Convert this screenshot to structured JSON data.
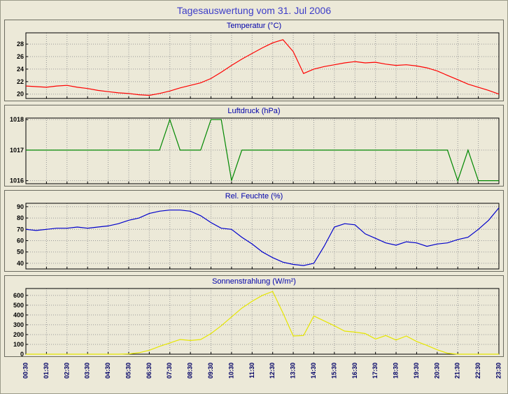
{
  "page": {
    "title": "Tagesauswertung vom 31. Jul 2006"
  },
  "colors": {
    "bg": "#ece9d8",
    "grid": "#999999",
    "title": "#3c3cc8",
    "ctitle": "#0000aa",
    "axis": "#000000",
    "xlabel": "#000066",
    "pborder": "#6b6b60"
  },
  "xaxis": {
    "tmin": 0.5,
    "tmax": 23.5,
    "labels": [
      "00:30",
      "01:30",
      "02:30",
      "03:30",
      "04:30",
      "05:30",
      "06:30",
      "07:30",
      "08:30",
      "09:30",
      "10:30",
      "11:30",
      "12:30",
      "13:30",
      "14:30",
      "15:30",
      "16:30",
      "17:30",
      "18:30",
      "19:30",
      "20:30",
      "21:30",
      "22:30",
      "23:30"
    ]
  },
  "chart_data": [
    {
      "type": "line",
      "name": "temperatur",
      "title": "Temperatur (°C)",
      "color": "#ff0000",
      "ymin": 19.3,
      "ymax": 29.8,
      "yticks": [
        28,
        26,
        24,
        22,
        20
      ],
      "tstart": 0.5,
      "tstep": 0.5,
      "values": [
        21.3,
        21.2,
        21.1,
        21.3,
        21.4,
        21.1,
        20.9,
        20.6,
        20.4,
        20.2,
        20.1,
        19.9,
        19.8,
        20.1,
        20.5,
        21.0,
        21.4,
        21.8,
        22.5,
        23.5,
        24.6,
        25.6,
        26.5,
        27.4,
        28.2,
        28.7,
        26.8,
        23.3,
        24.0,
        24.4,
        24.7,
        25.0,
        25.2,
        25.0,
        25.1,
        24.8,
        24.6,
        24.7,
        24.5,
        24.2,
        23.7,
        23.0,
        22.3,
        21.6,
        21.1,
        20.6,
        20.0
      ]
    },
    {
      "type": "line",
      "name": "luftdruck",
      "title": "Luftdruck (hPa)",
      "color": "#008800",
      "ymin": 1015.9,
      "ymax": 1018.05,
      "yticks": [
        1018,
        1017,
        1016
      ],
      "tstart": 0.5,
      "tstep": 0.5,
      "values": [
        1017,
        1017,
        1017,
        1017,
        1017,
        1017,
        1017,
        1017,
        1017,
        1017,
        1017,
        1017,
        1017,
        1017,
        1018,
        1017,
        1017,
        1017,
        1018,
        1018,
        1016,
        1017,
        1017,
        1017,
        1017,
        1017,
        1017,
        1017,
        1017,
        1017,
        1017,
        1017,
        1017,
        1017,
        1017,
        1017,
        1017,
        1017,
        1017,
        1017,
        1017,
        1017,
        1016,
        1017,
        1016,
        1016,
        1016
      ]
    },
    {
      "type": "line",
      "name": "rel-feuchte",
      "title": "Rel. Feuchte (%)",
      "color": "#0000cc",
      "ymin": 35,
      "ymax": 93,
      "yticks": [
        90,
        80,
        70,
        60,
        50,
        40
      ],
      "tstart": 0.5,
      "tstep": 0.5,
      "values": [
        70,
        69,
        70,
        71,
        71,
        72,
        71,
        72,
        73,
        75,
        78,
        80,
        84,
        86,
        87,
        87,
        86,
        82,
        76,
        71,
        70,
        63,
        57,
        50,
        45,
        41,
        39,
        38,
        40,
        55,
        72,
        75,
        74,
        66,
        62,
        58,
        56,
        59,
        58,
        55,
        57,
        58,
        61,
        63,
        70,
        78,
        89
      ]
    },
    {
      "type": "line",
      "name": "sonnenstrahlung",
      "title": "Sonnenstrahlung (W/m²)",
      "color": "#e6e600",
      "ymin": 0,
      "ymax": 670,
      "yticks": [
        600,
        500,
        400,
        300,
        200,
        100,
        0
      ],
      "tstart": 0.5,
      "tstep": 0.5,
      "values": [
        0,
        0,
        0,
        0,
        0,
        0,
        0,
        0,
        0,
        0,
        3,
        15,
        40,
        80,
        115,
        150,
        140,
        150,
        210,
        290,
        380,
        470,
        540,
        600,
        640,
        420,
        185,
        190,
        390,
        340,
        290,
        235,
        225,
        210,
        155,
        190,
        145,
        185,
        130,
        90,
        45,
        10,
        0,
        0,
        0,
        0,
        0
      ]
    }
  ]
}
